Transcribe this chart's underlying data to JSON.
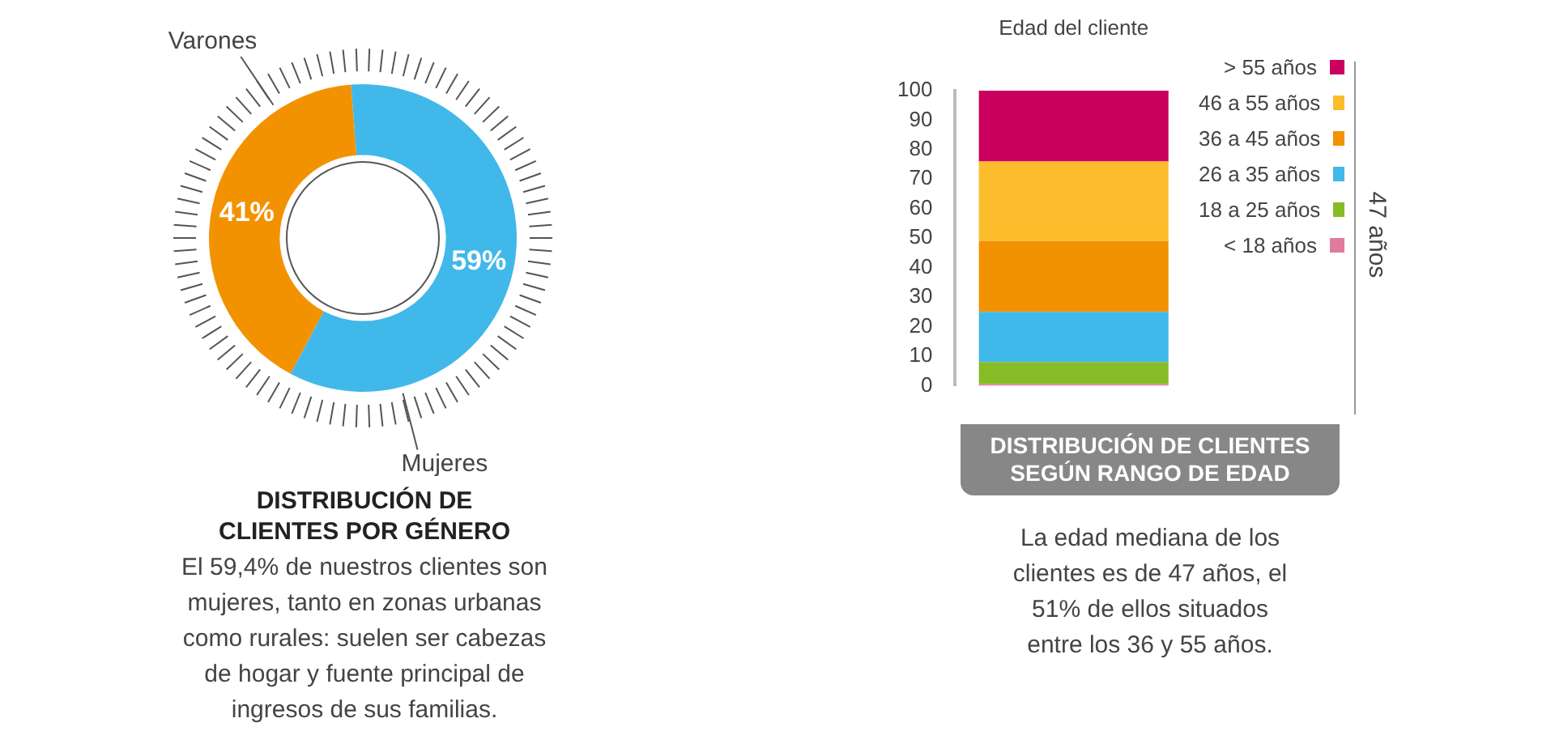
{
  "chart_data": [
    {
      "type": "donut",
      "title": "DISTRIBUCIÓN DE CLIENTES POR GÉNERO",
      "categories": [
        "Varones",
        "Mujeres"
      ],
      "values": [
        41,
        59
      ],
      "colors": [
        "#f39200",
        "#41b8ea"
      ],
      "value_labels": [
        "41%",
        "59%"
      ],
      "annotations": [
        "El 59,4% de nuestros clientes son mujeres, tanto en zonas urbanas como rurales: suelen ser cabezas de hogar y fuente principal de ingresos de sus familias."
      ]
    },
    {
      "type": "bar",
      "stacked": true,
      "title": "DISTRIBUCIÓN DE CLIENTES SEGÚN RANGO DE EDAD",
      "xlabel": "Edad del cliente",
      "categories": [
        null
      ],
      "series": [
        {
          "name": "< 18 años",
          "color": "#e07ba0",
          "values": [
            0.5
          ]
        },
        {
          "name": "18 a 25 años",
          "color": "#86bc25",
          "values": [
            7.5
          ]
        },
        {
          "name": "26 a 35 años",
          "color": "#41b8ea",
          "values": [
            17
          ]
        },
        {
          "name": "36 a 45 años",
          "color": "#f39200",
          "values": [
            24
          ]
        },
        {
          "name": "46 a 55 años",
          "color": "#fbbd2b",
          "values": [
            27
          ]
        },
        {
          "name": "> 55 años",
          "color": "#c9005e",
          "values": [
            24
          ]
        }
      ],
      "ylim": [
        0,
        100
      ],
      "yticks": [
        0,
        10,
        20,
        30,
        40,
        50,
        60,
        70,
        80,
        90,
        100
      ],
      "legend": "right",
      "annotations": [
        "47 años",
        "La edad mediana de los clientes es de 47 años, el 51% de ellos situados entre los 36 y 55 años."
      ]
    }
  ]
}
